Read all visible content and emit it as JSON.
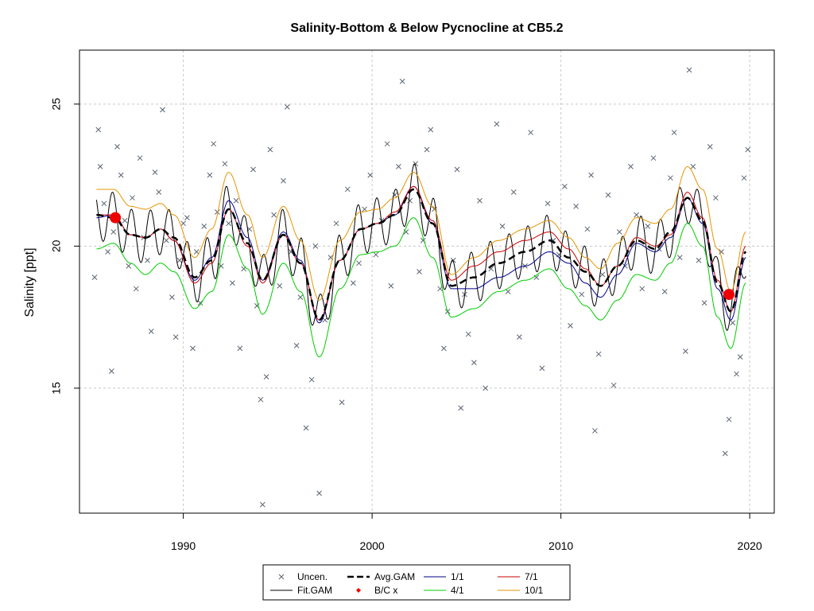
{
  "chart_data": {
    "type": "line",
    "title": "Salinity-Bottom & Below Pycnocline at CB5.2",
    "xlabel": "",
    "ylabel": "Salinity [ppt]",
    "xlim": [
      1984.5,
      2021.3
    ],
    "ylim": [
      10.6,
      26.9
    ],
    "x_ticks": [
      1990,
      2000,
      2010,
      2020
    ],
    "y_ticks": [
      15,
      20,
      25
    ],
    "grid": true,
    "legend": {
      "placement": "bottom-center",
      "entries": [
        "Uncen.",
        "Fit.GAM",
        "Avg.GAM",
        "B/C x",
        "1/1",
        "4/1",
        "7/1",
        "10/1"
      ]
    },
    "colors": {
      "uncen": "#5a6470",
      "fit_gam": "#000000",
      "avg_gam": "#000000",
      "bc_x": "#ee0000",
      "s1_1": "#00008b",
      "s4_1": "#00cc00",
      "s7_1": "#cc0000",
      "s10_1": "#e69500",
      "grid": "#c8c8c8"
    },
    "avg_gam": {
      "x": [
        1985.4,
        1986.3,
        1987.2,
        1988.0,
        1988.8,
        1989.5,
        1990.6,
        1991.5,
        1992.4,
        1993.4,
        1994.2,
        1995.3,
        1996.2,
        1997.2,
        1998.3,
        1999.4,
        2000.3,
        2001.2,
        2002.2,
        2003.2,
        2004.2,
        2005.4,
        2006.7,
        2008.1,
        2009.4,
        2010.4,
        2011.3,
        2012.1,
        2013.0,
        2014.0,
        2015.0,
        2015.8,
        2016.7,
        2017.5,
        2018.3,
        2019.0,
        2019.8
      ],
      "y": [
        21.1,
        21.0,
        20.4,
        20.3,
        20.6,
        20.3,
        18.9,
        19.5,
        21.3,
        20.1,
        18.8,
        20.4,
        19.4,
        17.4,
        19.5,
        20.6,
        20.8,
        21.1,
        22.0,
        20.8,
        18.6,
        18.9,
        19.4,
        19.8,
        20.2,
        19.6,
        19.1,
        18.6,
        19.3,
        20.2,
        19.9,
        20.5,
        21.7,
        20.9,
        18.7,
        17.7,
        19.8
      ]
    },
    "series": [
      {
        "name": "1/1",
        "x": [
          1985.4,
          1986.3,
          1987.2,
          1988.0,
          1988.8,
          1989.5,
          1990.6,
          1991.5,
          1992.4,
          1993.4,
          1994.2,
          1995.3,
          1996.2,
          1997.2,
          1998.3,
          1999.4,
          2000.3,
          2001.2,
          2002.2,
          2003.2,
          2004.2,
          2005.4,
          2006.7,
          2008.1,
          2009.4,
          2010.4,
          2011.3,
          2012.1,
          2013.0,
          2014.0,
          2015.0,
          2015.8,
          2016.7,
          2017.5,
          2018.3,
          2019.0,
          2019.8
        ],
        "y": [
          21.0,
          21.1,
          20.4,
          20.3,
          20.6,
          20.2,
          18.8,
          19.6,
          21.6,
          20.3,
          18.8,
          20.5,
          19.5,
          17.3,
          19.5,
          20.6,
          20.8,
          21.1,
          22.1,
          20.8,
          18.5,
          18.5,
          18.9,
          19.3,
          19.8,
          19.4,
          18.7,
          18.2,
          19.0,
          20.1,
          19.8,
          20.3,
          21.7,
          20.8,
          18.5,
          17.4,
          19.6
        ]
      },
      {
        "name": "4/1",
        "x": [
          1985.4,
          1986.3,
          1987.2,
          1988.0,
          1988.8,
          1989.5,
          1990.6,
          1991.5,
          1992.4,
          1993.4,
          1994.2,
          1995.3,
          1996.2,
          1997.2,
          1998.3,
          1999.4,
          2000.3,
          2001.2,
          2002.2,
          2003.2,
          2004.2,
          2005.4,
          2006.7,
          2008.1,
          2009.4,
          2010.4,
          2011.3,
          2012.1,
          2013.0,
          2014.0,
          2015.0,
          2015.8,
          2016.7,
          2017.5,
          2018.3,
          2019.0,
          2019.8
        ],
        "y": [
          19.9,
          20.1,
          19.4,
          19.0,
          19.4,
          19.1,
          17.8,
          18.4,
          20.4,
          19.2,
          17.6,
          19.4,
          18.4,
          16.1,
          18.5,
          19.7,
          19.8,
          20.0,
          21.0,
          19.6,
          17.5,
          17.8,
          18.4,
          18.8,
          19.2,
          18.5,
          17.9,
          17.4,
          18.1,
          19.0,
          18.8,
          19.4,
          20.8,
          20.0,
          17.5,
          16.4,
          18.7
        ]
      },
      {
        "name": "7/1",
        "x": [
          1985.4,
          1986.3,
          1987.2,
          1988.0,
          1988.8,
          1989.5,
          1990.6,
          1991.5,
          1992.4,
          1993.4,
          1994.2,
          1995.3,
          1996.2,
          1997.2,
          1998.3,
          1999.4,
          2000.3,
          2001.2,
          2002.2,
          2003.2,
          2004.2,
          2005.4,
          2006.7,
          2008.1,
          2009.4,
          2010.4,
          2011.3,
          2012.1,
          2013.0,
          2014.0,
          2015.0,
          2015.8,
          2016.7,
          2017.5,
          2018.3,
          2019.0,
          2019.8
        ],
        "y": [
          21.1,
          21.1,
          20.4,
          20.3,
          20.6,
          20.2,
          18.7,
          19.4,
          21.3,
          20.0,
          18.7,
          20.4,
          19.4,
          17.4,
          19.5,
          20.6,
          20.8,
          21.2,
          22.1,
          20.9,
          18.8,
          19.3,
          19.8,
          20.2,
          20.5,
          19.9,
          19.2,
          18.6,
          19.3,
          20.3,
          20.0,
          20.4,
          21.9,
          21.0,
          18.8,
          17.7,
          20.0
        ]
      },
      {
        "name": "10/1",
        "x": [
          1985.4,
          1986.3,
          1987.2,
          1988.0,
          1988.8,
          1989.5,
          1990.6,
          1991.5,
          1992.4,
          1993.4,
          1994.2,
          1995.3,
          1996.2,
          1997.2,
          1998.3,
          1999.4,
          2000.3,
          2001.2,
          2002.2,
          2003.2,
          2004.2,
          2005.4,
          2006.7,
          2008.1,
          2009.4,
          2010.4,
          2011.3,
          2012.1,
          2013.0,
          2014.0,
          2015.0,
          2015.8,
          2016.7,
          2017.5,
          2018.3,
          2019.0,
          2019.8
        ],
        "y": [
          22.0,
          22.0,
          21.4,
          21.3,
          21.5,
          21.1,
          19.6,
          20.6,
          22.6,
          21.1,
          19.6,
          21.4,
          20.2,
          18.1,
          20.2,
          21.2,
          21.3,
          21.7,
          22.6,
          21.4,
          19.0,
          19.6,
          20.2,
          20.6,
          20.9,
          20.3,
          19.6,
          19.2,
          20.1,
          21.0,
          20.8,
          21.3,
          22.8,
          22.0,
          19.9,
          18.4,
          20.5
        ]
      }
    ],
    "fit_gam_amplitude_ppt": 0.9,
    "fit_gam_phase_years": 0.25,
    "bc_x": {
      "x": [
        1986.4,
        2018.9
      ],
      "y": [
        21.0,
        18.3
      ]
    },
    "uncen": {
      "x": [
        1985.3,
        1985.5,
        1985.6,
        1985.8,
        1986.0,
        1986.2,
        1986.3,
        1986.5,
        1986.7,
        1986.9,
        1987.1,
        1987.3,
        1987.5,
        1987.7,
        1987.9,
        1988.1,
        1988.3,
        1988.5,
        1988.7,
        1988.9,
        1989.1,
        1989.4,
        1989.6,
        1989.8,
        1990.0,
        1990.2,
        1990.5,
        1990.7,
        1990.9,
        1991.1,
        1991.4,
        1991.6,
        1991.8,
        1992.0,
        1992.2,
        1992.4,
        1992.6,
        1992.8,
        1993.0,
        1993.2,
        1993.5,
        1993.7,
        1993.9,
        1994.1,
        1994.2,
        1994.4,
        1994.6,
        1994.8,
        1995.1,
        1995.3,
        1995.5,
        1995.7,
        1996.0,
        1996.2,
        1996.5,
        1996.8,
        1997.0,
        1997.2,
        1997.5,
        1997.8,
        1998.1,
        1998.4,
        1998.7,
        1999.0,
        1999.3,
        1999.6,
        1999.9,
        2000.2,
        2000.5,
        2000.8,
        2001.0,
        2001.2,
        2001.4,
        2001.6,
        2001.8,
        2002.0,
        2002.3,
        2002.5,
        2002.7,
        2002.9,
        2003.1,
        2003.3,
        2003.6,
        2003.8,
        2004.0,
        2004.3,
        2004.5,
        2004.7,
        2004.9,
        2005.1,
        2005.4,
        2005.7,
        2006.0,
        2006.3,
        2006.6,
        2006.9,
        2007.2,
        2007.5,
        2007.8,
        2008.1,
        2008.4,
        2008.7,
        2009.0,
        2009.3,
        2009.6,
        2009.9,
        2010.2,
        2010.5,
        2010.8,
        2011.1,
        2011.4,
        2011.6,
        2011.8,
        2012.0,
        2012.2,
        2012.5,
        2012.8,
        2013.1,
        2013.4,
        2013.7,
        2014.0,
        2014.3,
        2014.6,
        2014.9,
        2015.2,
        2015.5,
        2015.8,
        2016.0,
        2016.3,
        2016.6,
        2016.8,
        2017.0,
        2017.3,
        2017.6,
        2017.9,
        2018.2,
        2018.5,
        2018.7,
        2018.9,
        2019.1,
        2019.3,
        2019.5,
        2019.7,
        2019.9
      ],
      "y": [
        18.9,
        24.1,
        22.8,
        21.5,
        19.8,
        15.6,
        20.5,
        23.5,
        22.5,
        20.9,
        19.3,
        21.7,
        18.5,
        23.1,
        20.3,
        19.5,
        17.0,
        22.6,
        21.9,
        24.8,
        20.2,
        18.2,
        16.8,
        19.5,
        20.8,
        21.0,
        16.4,
        19.8,
        18.0,
        20.7,
        22.5,
        23.6,
        21.2,
        19.3,
        22.9,
        20.8,
        18.7,
        21.6,
        16.4,
        19.2,
        20.6,
        22.7,
        17.9,
        14.6,
        10.9,
        15.4,
        23.4,
        21.1,
        18.6,
        22.3,
        24.9,
        19.8,
        16.5,
        18.2,
        13.6,
        15.3,
        20.0,
        11.3,
        17.4,
        19.6,
        20.8,
        14.5,
        22.0,
        18.7,
        19.4,
        21.3,
        22.5,
        19.7,
        20.9,
        23.6,
        18.6,
        21.8,
        22.8,
        25.8,
        20.5,
        21.6,
        22.9,
        19.1,
        20.2,
        23.4,
        24.1,
        21.3,
        18.5,
        16.4,
        17.7,
        19.5,
        22.7,
        14.3,
        18.3,
        16.9,
        15.9,
        21.6,
        15.0,
        19.2,
        24.3,
        20.7,
        18.4,
        21.9,
        16.8,
        19.3,
        24.0,
        18.9,
        15.7,
        21.5,
        20.2,
        19.7,
        22.1,
        17.2,
        21.4,
        18.3,
        20.6,
        22.5,
        13.5,
        16.2,
        19.0,
        21.8,
        15.1,
        20.5,
        19.3,
        22.8,
        21.1,
        18.5,
        20.7,
        23.1,
        19.9,
        18.4,
        22.4,
        24.0,
        19.6,
        16.3,
        26.2,
        22.8,
        19.5,
        18.0,
        23.5,
        21.7,
        19.8,
        12.7,
        13.9,
        17.3,
        15.5,
        16.1,
        22.4,
        23.4
      ]
    }
  }
}
